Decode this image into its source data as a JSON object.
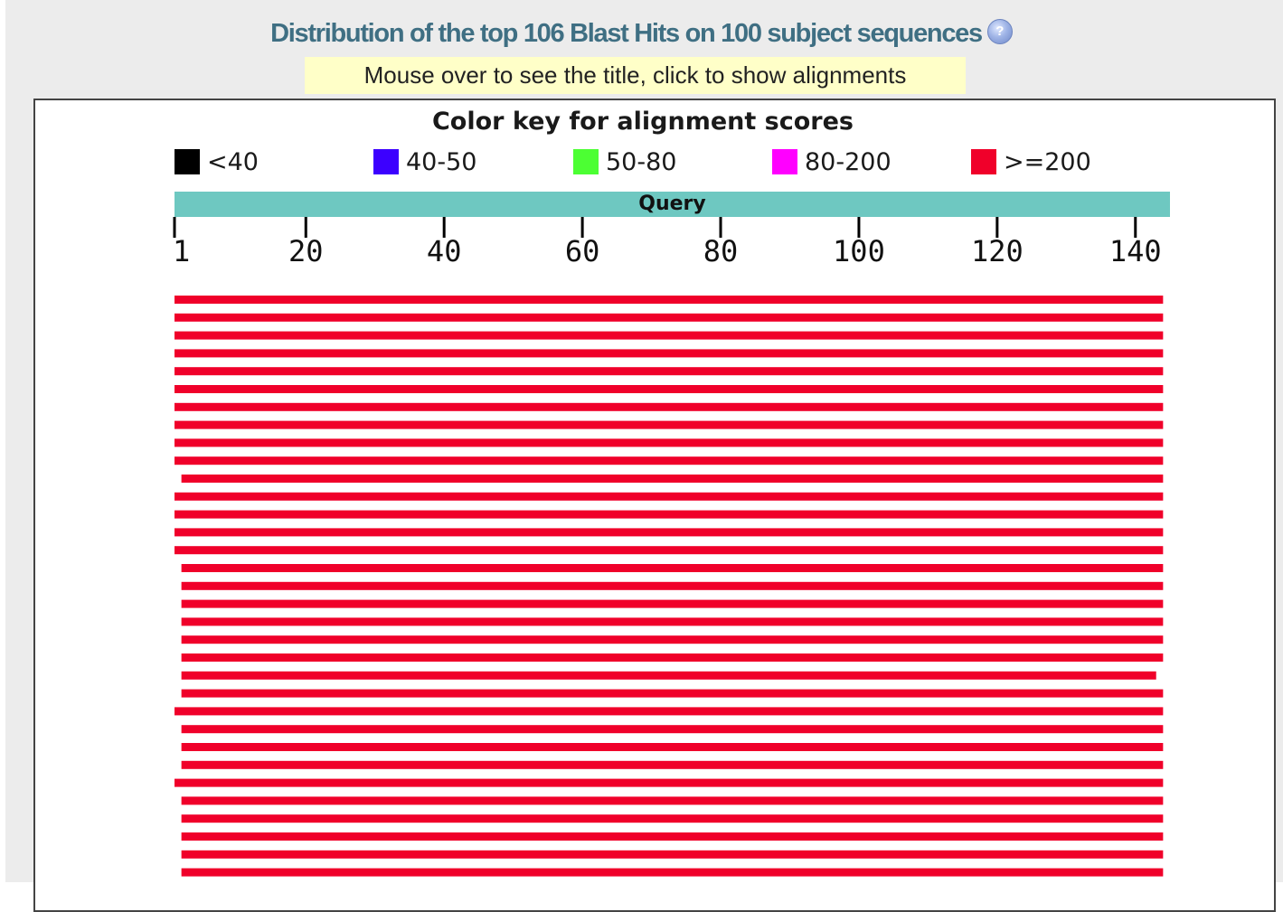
{
  "header": {
    "title": "Distribution of the top 106 Blast Hits on 100 subject sequences",
    "help_icon": "question-circle-icon",
    "hint": "Mouse over to see the title, click to show alignments"
  },
  "color_key": {
    "title": "Color key for alignment scores",
    "items": [
      {
        "label": "<40",
        "color": "#000000"
      },
      {
        "label": "40-50",
        "color": "#3c00ff"
      },
      {
        "label": "50-80",
        "color": "#4cff33"
      },
      {
        "label": "80-200",
        "color": "#ff00ff"
      },
      {
        "label": ">=200",
        "color": "#f0002a"
      }
    ]
  },
  "query_bar": {
    "label": "Query",
    "color": "#6ec8c1"
  },
  "chart_data": {
    "type": "bar",
    "axis": {
      "min": 1,
      "max": 145,
      "ticks": [
        1,
        20,
        40,
        60,
        80,
        100,
        120,
        140
      ]
    },
    "hit_color": "#f0002a",
    "hits": [
      {
        "start": 1,
        "end": 144
      },
      {
        "start": 1,
        "end": 144
      },
      {
        "start": 1,
        "end": 144
      },
      {
        "start": 1,
        "end": 144
      },
      {
        "start": 1,
        "end": 144
      },
      {
        "start": 1,
        "end": 144
      },
      {
        "start": 1,
        "end": 144
      },
      {
        "start": 1,
        "end": 144
      },
      {
        "start": 1,
        "end": 144
      },
      {
        "start": 1,
        "end": 144
      },
      {
        "start": 2,
        "end": 144
      },
      {
        "start": 1,
        "end": 144
      },
      {
        "start": 1,
        "end": 144
      },
      {
        "start": 1,
        "end": 144
      },
      {
        "start": 1,
        "end": 144
      },
      {
        "start": 2,
        "end": 144
      },
      {
        "start": 2,
        "end": 144
      },
      {
        "start": 2,
        "end": 144
      },
      {
        "start": 2,
        "end": 144
      },
      {
        "start": 2,
        "end": 144
      },
      {
        "start": 2,
        "end": 144
      },
      {
        "start": 2,
        "end": 143
      },
      {
        "start": 2,
        "end": 144
      },
      {
        "start": 1,
        "end": 144
      },
      {
        "start": 2,
        "end": 144
      },
      {
        "start": 2,
        "end": 144
      },
      {
        "start": 2,
        "end": 144
      },
      {
        "start": 1,
        "end": 144
      },
      {
        "start": 2,
        "end": 144
      },
      {
        "start": 2,
        "end": 144
      },
      {
        "start": 2,
        "end": 144
      },
      {
        "start": 2,
        "end": 144
      },
      {
        "start": 2,
        "end": 144
      }
    ]
  }
}
